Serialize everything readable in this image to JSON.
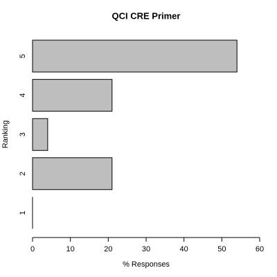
{
  "chart_data": {
    "type": "barh",
    "title": "QCI CRE Primer",
    "xlabel": "% Responses",
    "ylabel": "Ranking",
    "categories": [
      "1",
      "2",
      "3",
      "4",
      "5"
    ],
    "values": [
      0,
      21,
      4,
      21,
      54
    ],
    "color": "#bebebe",
    "xlim": [
      0,
      60
    ],
    "xticks": [
      0,
      10,
      20,
      30,
      40,
      50,
      60
    ]
  }
}
